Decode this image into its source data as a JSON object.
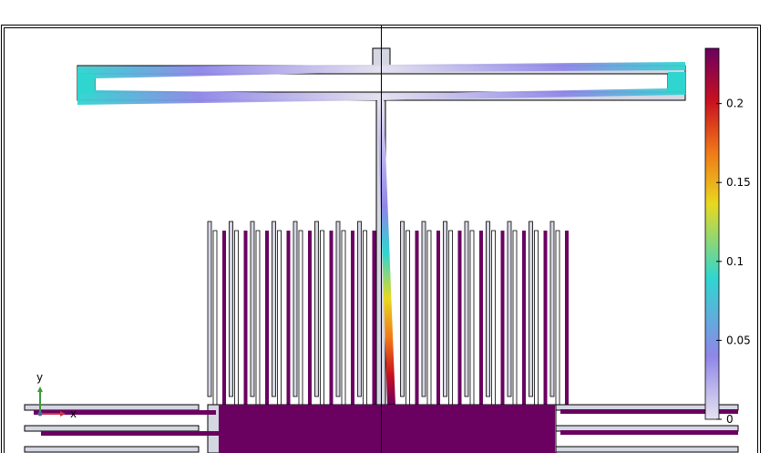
{
  "colorbar": {
    "ticks": [
      {
        "value": 0.2,
        "label": "0.2"
      },
      {
        "value": 0.15,
        "label": "0.15"
      },
      {
        "value": 0.1,
        "label": "0.1"
      },
      {
        "value": 0.05,
        "label": "0.05"
      },
      {
        "value": 0,
        "label": "0"
      }
    ],
    "range": [
      0,
      0.235
    ]
  },
  "axes_triad": {
    "y_label": "y",
    "x_label": "x",
    "y_color": "#3a9a3a",
    "x_color": "#d0304a"
  },
  "colors": {
    "low": "#e6e2f0",
    "mid_low": "#8f86e8",
    "cyan": "#2fd6d0",
    "yellow": "#e8d820",
    "orange": "#f07818",
    "red": "#c81020",
    "high": "#6a0060",
    "geometry_fill": "#d4d6e2"
  }
}
